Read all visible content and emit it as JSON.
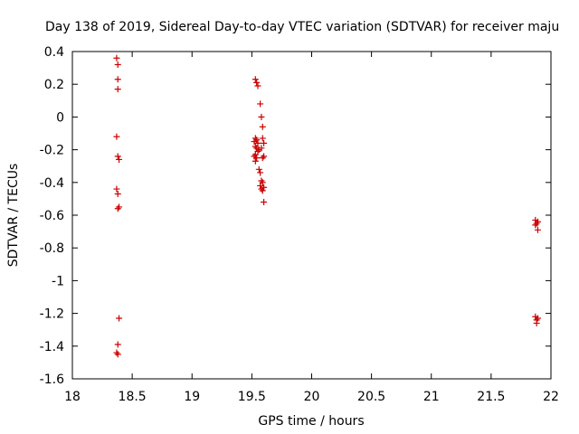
{
  "chart_data": {
    "type": "scatter",
    "title": "Day 138 of 2019, Sidereal Day-to-day VTEC variation (SDTVAR) for receiver maju",
    "xlabel": "GPS time / hours",
    "ylabel": "SDTVAR / TECUs",
    "xlim": [
      18,
      22
    ],
    "ylim": [
      -1.6,
      0.4
    ],
    "xticks": [
      "18",
      "18.5",
      "19",
      "19.5",
      "20",
      "20.5",
      "21",
      "21.5",
      "22"
    ],
    "yticks": [
      "0.4",
      "0.2",
      "0",
      "-0.2",
      "-0.4",
      "-0.6",
      "-0.8",
      "-1",
      "-1.2",
      "-1.4",
      "-1.6"
    ],
    "grid": false,
    "marker": "+",
    "color": "#cc0000",
    "series": [
      {
        "name": "SDTVAR",
        "points": [
          [
            18.37,
            0.36
          ],
          [
            18.38,
            0.32
          ],
          [
            18.38,
            0.23
          ],
          [
            18.38,
            0.17
          ],
          [
            18.37,
            -0.12
          ],
          [
            18.38,
            -0.24
          ],
          [
            18.39,
            -0.26
          ],
          [
            18.37,
            -0.44
          ],
          [
            18.38,
            -0.47
          ],
          [
            18.39,
            -0.55
          ],
          [
            18.38,
            -0.56
          ],
          [
            18.39,
            -1.23
          ],
          [
            18.38,
            -1.39
          ],
          [
            18.37,
            -1.44
          ],
          [
            18.38,
            -1.45
          ],
          [
            19.53,
            0.23
          ],
          [
            19.54,
            0.21
          ],
          [
            19.55,
            0.19
          ],
          [
            19.57,
            0.08
          ],
          [
            19.58,
            0.0
          ],
          [
            19.59,
            -0.06
          ],
          [
            19.53,
            -0.13
          ],
          [
            19.54,
            -0.14
          ],
          [
            19.52,
            -0.15
          ],
          [
            19.55,
            -0.16
          ],
          [
            19.53,
            -0.18
          ],
          [
            19.54,
            -0.19
          ],
          [
            19.56,
            -0.2
          ],
          [
            19.55,
            -0.21
          ],
          [
            19.53,
            -0.23
          ],
          [
            19.54,
            -0.25
          ],
          [
            19.52,
            -0.24
          ],
          [
            19.53,
            -0.27
          ],
          [
            19.59,
            -0.13
          ],
          [
            19.6,
            -0.16
          ],
          [
            19.58,
            -0.19
          ],
          [
            19.6,
            -0.24
          ],
          [
            19.59,
            -0.25
          ],
          [
            19.56,
            -0.32
          ],
          [
            19.57,
            -0.34
          ],
          [
            19.58,
            -0.39
          ],
          [
            19.59,
            -0.4
          ],
          [
            19.57,
            -0.42
          ],
          [
            19.58,
            -0.44
          ],
          [
            19.59,
            -0.45
          ],
          [
            19.6,
            -0.43
          ],
          [
            19.6,
            -0.52
          ],
          [
            21.87,
            -0.63
          ],
          [
            21.88,
            -0.65
          ],
          [
            21.89,
            -0.64
          ],
          [
            21.87,
            -0.66
          ],
          [
            21.89,
            -0.69
          ],
          [
            21.87,
            -1.22
          ],
          [
            21.88,
            -1.24
          ],
          [
            21.89,
            -1.23
          ],
          [
            21.88,
            -1.26
          ]
        ]
      }
    ]
  }
}
